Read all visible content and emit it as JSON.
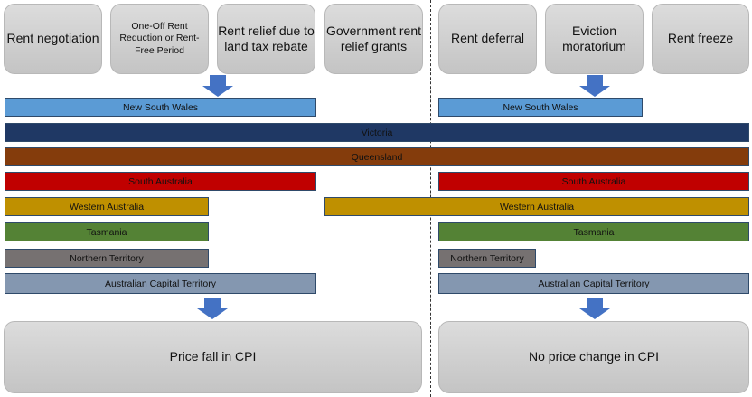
{
  "left_measures": [
    "Rent negotiation",
    "One-Off Rent Reduction or Rent-Free Period",
    "Rent relief due to land tax rebate",
    "Government rent relief grants"
  ],
  "right_measures": [
    "Rent deferral",
    "Eviction moratorium",
    "Rent freeze"
  ],
  "states": {
    "nsw": "New South Wales",
    "vic": "Victoria",
    "qld": "Queensland",
    "sa": "South Australia",
    "wa": "Western Australia",
    "tas": "Tasmania",
    "nt": "Northern Territory",
    "act": "Australian Capital Territory"
  },
  "colors": {
    "nsw": "#5b9bd5",
    "vic": "#1f3864",
    "qld": "#843c0c",
    "sa": "#c00000",
    "wa": "#bf9000",
    "tas": "#548235",
    "nt": "#767171",
    "act": "#8497b0",
    "arrow": "#4472c4"
  },
  "outcomes": {
    "left": "Price fall in CPI",
    "right": "No price change in CPI"
  }
}
